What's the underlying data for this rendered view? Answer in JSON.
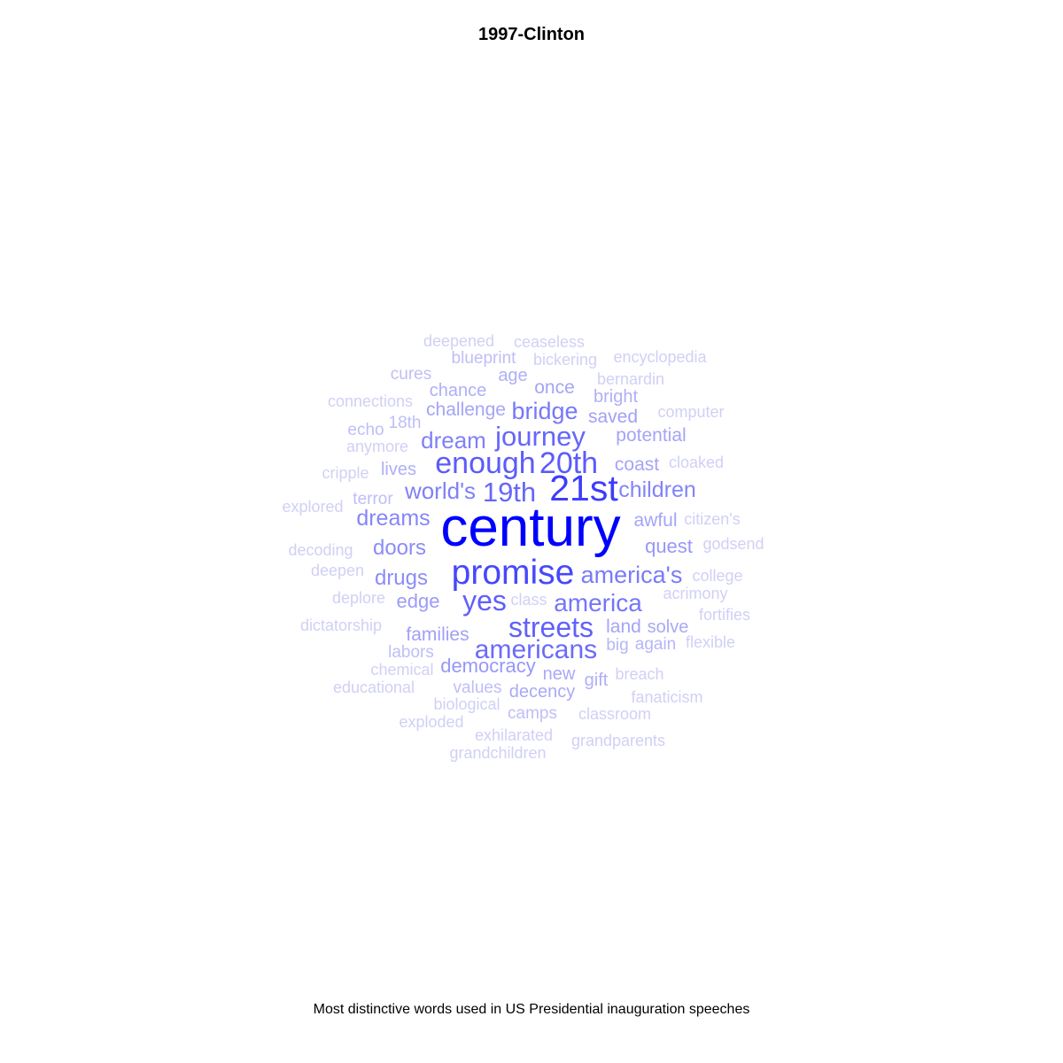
{
  "chart_data": {
    "type": "wordcloud",
    "title": "1997-Clinton",
    "caption": "Most distinctive words used in US Presidential inauguration speeches",
    "color_scale": [
      "#d0d0f6",
      "#0000ff"
    ],
    "words": [
      {
        "text": "century",
        "weight": 10
      },
      {
        "text": "21st",
        "weight": 6
      },
      {
        "text": "promise",
        "weight": 5.5
      },
      {
        "text": "enough",
        "weight": 4.5
      },
      {
        "text": "20th",
        "weight": 4.5
      },
      {
        "text": "streets",
        "weight": 4.2
      },
      {
        "text": "journey",
        "weight": 4
      },
      {
        "text": "19th",
        "weight": 4
      },
      {
        "text": "yes",
        "weight": 4.3
      },
      {
        "text": "americans",
        "weight": 3.8
      },
      {
        "text": "america",
        "weight": 3.4
      },
      {
        "text": "america's",
        "weight": 3.2
      },
      {
        "text": "bridge",
        "weight": 3.3
      },
      {
        "text": "world's",
        "weight": 3
      },
      {
        "text": "dream",
        "weight": 3
      },
      {
        "text": "children",
        "weight": 2.9
      },
      {
        "text": "dreams",
        "weight": 2.8
      },
      {
        "text": "doors",
        "weight": 2.6
      },
      {
        "text": "drugs",
        "weight": 2.6
      },
      {
        "text": "democracy",
        "weight": 2.3
      },
      {
        "text": "quest",
        "weight": 2.3
      },
      {
        "text": "edge",
        "weight": 2.2
      },
      {
        "text": "families",
        "weight": 2.1
      },
      {
        "text": "saved",
        "weight": 2.1
      },
      {
        "text": "potential",
        "weight": 2
      },
      {
        "text": "awful",
        "weight": 2
      },
      {
        "text": "land",
        "weight": 2
      },
      {
        "text": "coast",
        "weight": 2
      },
      {
        "text": "once",
        "weight": 2
      },
      {
        "text": "challenge",
        "weight": 2
      },
      {
        "text": "decency",
        "weight": 1.9
      },
      {
        "text": "solve",
        "weight": 1.9
      },
      {
        "text": "new",
        "weight": 1.9
      },
      {
        "text": "lives",
        "weight": 1.8
      },
      {
        "text": "gift",
        "weight": 1.8
      },
      {
        "text": "bright",
        "weight": 1.8
      },
      {
        "text": "chance",
        "weight": 1.8
      },
      {
        "text": "age",
        "weight": 1.8
      },
      {
        "text": "again",
        "weight": 1.7
      },
      {
        "text": "big",
        "weight": 1.7
      },
      {
        "text": "terror",
        "weight": 1.6
      },
      {
        "text": "blueprint",
        "weight": 1.6
      },
      {
        "text": "values",
        "weight": 1.6
      },
      {
        "text": "camps",
        "weight": 1.6
      },
      {
        "text": "18th",
        "weight": 1.6
      },
      {
        "text": "echo",
        "weight": 1.6
      },
      {
        "text": "cures",
        "weight": 1.6
      },
      {
        "text": "labors",
        "weight": 1.6
      },
      {
        "text": "deepened",
        "weight": 1.5
      },
      {
        "text": "ceaseless",
        "weight": 1.5
      },
      {
        "text": "bickering",
        "weight": 1.5
      },
      {
        "text": "encyclopedia",
        "weight": 1.5
      },
      {
        "text": "bernardin",
        "weight": 1.5
      },
      {
        "text": "connections",
        "weight": 1.5
      },
      {
        "text": "computer",
        "weight": 1.5
      },
      {
        "text": "anymore",
        "weight": 1.5
      },
      {
        "text": "cripple",
        "weight": 1.5
      },
      {
        "text": "cloaked",
        "weight": 1.5
      },
      {
        "text": "explored",
        "weight": 1.5
      },
      {
        "text": "citizen's",
        "weight": 1.5
      },
      {
        "text": "godsend",
        "weight": 1.5
      },
      {
        "text": "decoding",
        "weight": 1.5
      },
      {
        "text": "deepen",
        "weight": 1.5
      },
      {
        "text": "college",
        "weight": 1.5
      },
      {
        "text": "deplore",
        "weight": 1.5
      },
      {
        "text": "class",
        "weight": 1.5
      },
      {
        "text": "acrimony",
        "weight": 1.5
      },
      {
        "text": "fortifies",
        "weight": 1.5
      },
      {
        "text": "dictatorship",
        "weight": 1.5
      },
      {
        "text": "flexible",
        "weight": 1.5
      },
      {
        "text": "chemical",
        "weight": 1.5
      },
      {
        "text": "breach",
        "weight": 1.5
      },
      {
        "text": "educational",
        "weight": 1.5
      },
      {
        "text": "fanaticism",
        "weight": 1.5
      },
      {
        "text": "biological",
        "weight": 1.5
      },
      {
        "text": "classroom",
        "weight": 1.5
      },
      {
        "text": "exploded",
        "weight": 1.5
      },
      {
        "text": "exhilarated",
        "weight": 1.5
      },
      {
        "text": "grandparents",
        "weight": 1.5
      },
      {
        "text": "grandchildren",
        "weight": 1.5
      }
    ]
  }
}
